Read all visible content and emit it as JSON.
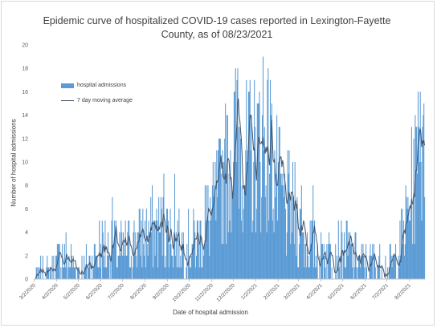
{
  "chart_data": {
    "type": "bar",
    "title": "Epidemic curve of hospitalized COVID-19 cases reported in Lexington-Fayette County, as of 08/23/2021",
    "title_lines": [
      "Epidemic curve of hospitalized COVID-19 cases reported in Lexington-Fayette",
      "County, as of 08/23/2021"
    ],
    "xlabel": "Date of hospital admission",
    "ylabel": "Number of hospital admissions",
    "ylim": [
      0,
      20
    ],
    "yticks": [
      0,
      2,
      4,
      6,
      8,
      10,
      12,
      14,
      16,
      18,
      20
    ],
    "x_start": "3/2/2020",
    "x_end": "8/23/2021",
    "xticks": [
      "3/2/2020",
      "4/2/2020",
      "5/2/2020",
      "6/2/2020",
      "7/2/2020",
      "8/2/2020",
      "9/2/2020",
      "10/2/2020",
      "11/2/2020",
      "12/2/2020",
      "1/2/2021",
      "2/2/2021",
      "3/2/2021",
      "4/2/2021",
      "5/2/2021",
      "6/2/2021",
      "7/2/2021",
      "8/2/2021"
    ],
    "grid": false,
    "legend_position": "top-left",
    "series": [
      {
        "name": "hospital admissions",
        "kind": "bar",
        "color": "#5b9bd5"
      },
      {
        "name": "7 day moving average",
        "kind": "line",
        "color": "#44546a"
      }
    ],
    "daily_profile": [
      {
        "date": "3/2/2020",
        "avg": 0
      },
      {
        "date": "3/20/2020",
        "avg": 0.3
      },
      {
        "date": "4/5/2020",
        "avg": 1.5
      },
      {
        "date": "4/12/2020",
        "avg": 2
      },
      {
        "date": "4/25/2020",
        "avg": 1.2
      },
      {
        "date": "5/5/2020",
        "avg": 0.6
      },
      {
        "date": "5/20/2020",
        "avg": 1.5
      },
      {
        "date": "6/2/2020",
        "avg": 2.8
      },
      {
        "date": "6/20/2020",
        "avg": 2.4
      },
      {
        "date": "7/2/2020",
        "avg": 2.2
      },
      {
        "date": "7/25/2020",
        "avg": 3.6
      },
      {
        "date": "8/15/2020",
        "avg": 4.2
      },
      {
        "date": "9/2/2020",
        "avg": 4.2
      },
      {
        "date": "9/15/2020",
        "avg": 3.2
      },
      {
        "date": "10/2/2020",
        "avg": 3
      },
      {
        "date": "10/15/2020",
        "avg": 3.4
      },
      {
        "date": "11/2/2020",
        "avg": 5.5
      },
      {
        "date": "11/15/2020",
        "avg": 8
      },
      {
        "date": "12/1/2020",
        "avg": 11
      },
      {
        "date": "12/10/2020",
        "avg": 12.5
      },
      {
        "date": "12/20/2020",
        "avg": 10
      },
      {
        "date": "1/2/2021",
        "avg": 10.5
      },
      {
        "date": "1/10/2021",
        "avg": 11.8
      },
      {
        "date": "1/20/2021",
        "avg": 11
      },
      {
        "date": "2/2/2021",
        "avg": 8
      },
      {
        "date": "2/12/2021",
        "avg": 6.2
      },
      {
        "date": "2/25/2021",
        "avg": 5.6
      },
      {
        "date": "3/5/2021",
        "avg": 4
      },
      {
        "date": "3/20/2021",
        "avg": 2.8
      },
      {
        "date": "4/2/2021",
        "avg": 2
      },
      {
        "date": "4/20/2021",
        "avg": 2.6
      },
      {
        "date": "5/2/2021",
        "avg": 2.6
      },
      {
        "date": "5/20/2021",
        "avg": 1.8
      },
      {
        "date": "6/2/2021",
        "avg": 1.2
      },
      {
        "date": "6/20/2021",
        "avg": 1.4
      },
      {
        "date": "7/2/2021",
        "avg": 0.7
      },
      {
        "date": "7/15/2021",
        "avg": 1.6
      },
      {
        "date": "7/25/2021",
        "avg": 4
      },
      {
        "date": "8/5/2021",
        "avg": 7.5
      },
      {
        "date": "8/15/2021",
        "avg": 11
      },
      {
        "date": "8/23/2021",
        "avg": 9.5
      }
    ],
    "spikes": [
      {
        "date": "12/8/2020",
        "value": 18
      },
      {
        "date": "12/25/2020",
        "value": 17
      },
      {
        "date": "1/12/2021",
        "value": 19
      },
      {
        "date": "1/22/2021",
        "value": 17
      },
      {
        "date": "11/20/2020",
        "value": 12
      },
      {
        "date": "8/14/2021",
        "value": 16
      },
      {
        "date": "8/17/2021",
        "value": 16
      },
      {
        "date": "8/20/2021",
        "value": 13
      },
      {
        "date": "8/10/2021",
        "value": 14
      },
      {
        "date": "9/12/2020",
        "value": 9
      },
      {
        "date": "8/28/2020",
        "value": 9
      },
      {
        "date": "6/18/2020",
        "value": 7
      },
      {
        "date": "3/22/2021",
        "value": 8
      },
      {
        "date": "3/6/2021",
        "value": 8
      },
      {
        "date": "2/8/2021",
        "value": 9
      },
      {
        "date": "10/24/2020",
        "value": 8
      }
    ]
  }
}
